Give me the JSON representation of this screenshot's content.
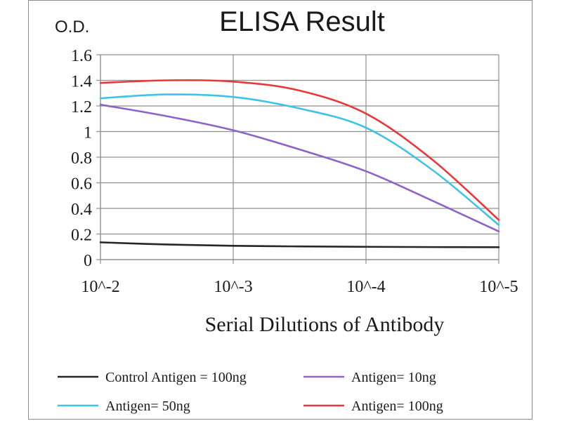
{
  "chart_data": {
    "type": "line",
    "title": "ELISA Result",
    "ylabel": "O.D.",
    "xlabel": "Serial Dilutions  of Antibody",
    "categories": [
      "10^-2",
      "10^-3",
      "10^-4",
      "10^-5"
    ],
    "ylim": [
      0,
      1.6
    ],
    "yticks": [
      "0",
      "0.2",
      "0.4",
      "0.6",
      "0.8",
      "1",
      "1.2",
      "1.4",
      "1.6"
    ],
    "grid": true,
    "legend_position": "bottom",
    "series": [
      {
        "name": "Control Antigen = 100ng",
        "color": "#262626",
        "x": [
          0,
          0.5,
          1,
          1.5,
          2,
          2.5,
          3
        ],
        "values": [
          0.135,
          0.118,
          0.108,
          0.103,
          0.1,
          0.098,
          0.097
        ]
      },
      {
        "name": "Antigen= 10ng",
        "color": "#8e63c8",
        "x": [
          0,
          0.5,
          1,
          1.5,
          2,
          2.5,
          3
        ],
        "values": [
          1.21,
          1.12,
          1.01,
          0.86,
          0.69,
          0.46,
          0.22
        ]
      },
      {
        "name": "Antigen= 50ng",
        "color": "#3fc2e8",
        "x": [
          0,
          0.5,
          1,
          1.5,
          2,
          2.5,
          3
        ],
        "values": [
          1.26,
          1.29,
          1.27,
          1.18,
          1.03,
          0.7,
          0.27
        ]
      },
      {
        "name": "Antigen= 100ng",
        "color": "#e8383a",
        "x": [
          0,
          0.5,
          1,
          1.5,
          2,
          2.5,
          3
        ],
        "values": [
          1.38,
          1.4,
          1.39,
          1.32,
          1.14,
          0.78,
          0.31
        ]
      }
    ]
  }
}
